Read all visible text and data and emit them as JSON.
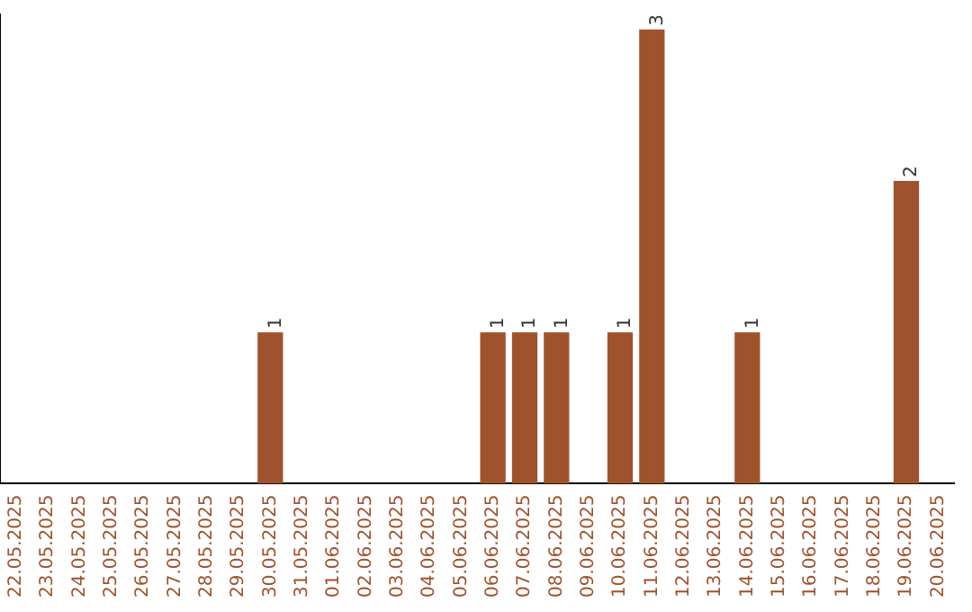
{
  "chart_data": {
    "type": "bar",
    "categories": [
      "22.05.2025",
      "23.05.2025",
      "24.05.2025",
      "25.05.2025",
      "26.05.2025",
      "27.05.2025",
      "28.05.2025",
      "29.05.2025",
      "30.05.2025",
      "31.05.2025",
      "01.06.2025",
      "02.06.2025",
      "03.06.2025",
      "04.06.2025",
      "05.06.2025",
      "06.06.2025",
      "07.06.2025",
      "08.06.2025",
      "09.06.2025",
      "10.06.2025",
      "11.06.2025",
      "12.06.2025",
      "13.06.2025",
      "14.06.2025",
      "15.06.2025",
      "16.06.2025",
      "17.06.2025",
      "18.06.2025",
      "19.06.2025",
      "20.06.2025"
    ],
    "values": [
      0,
      0,
      0,
      0,
      0,
      0,
      0,
      0,
      1,
      0,
      0,
      0,
      0,
      0,
      0,
      1,
      1,
      1,
      0,
      1,
      3,
      0,
      0,
      1,
      0,
      0,
      0,
      0,
      2,
      0
    ],
    "value_labels": [
      null,
      null,
      null,
      null,
      null,
      null,
      null,
      null,
      "1",
      null,
      null,
      null,
      null,
      null,
      null,
      "1",
      "1",
      "1",
      null,
      "1",
      "3",
      null,
      null,
      "1",
      null,
      null,
      null,
      null,
      "2",
      null
    ],
    "color": "#a0522d",
    "ylim": [
      0,
      3.1
    ],
    "tick_labels": "x",
    "grid": false,
    "legend": false
  }
}
